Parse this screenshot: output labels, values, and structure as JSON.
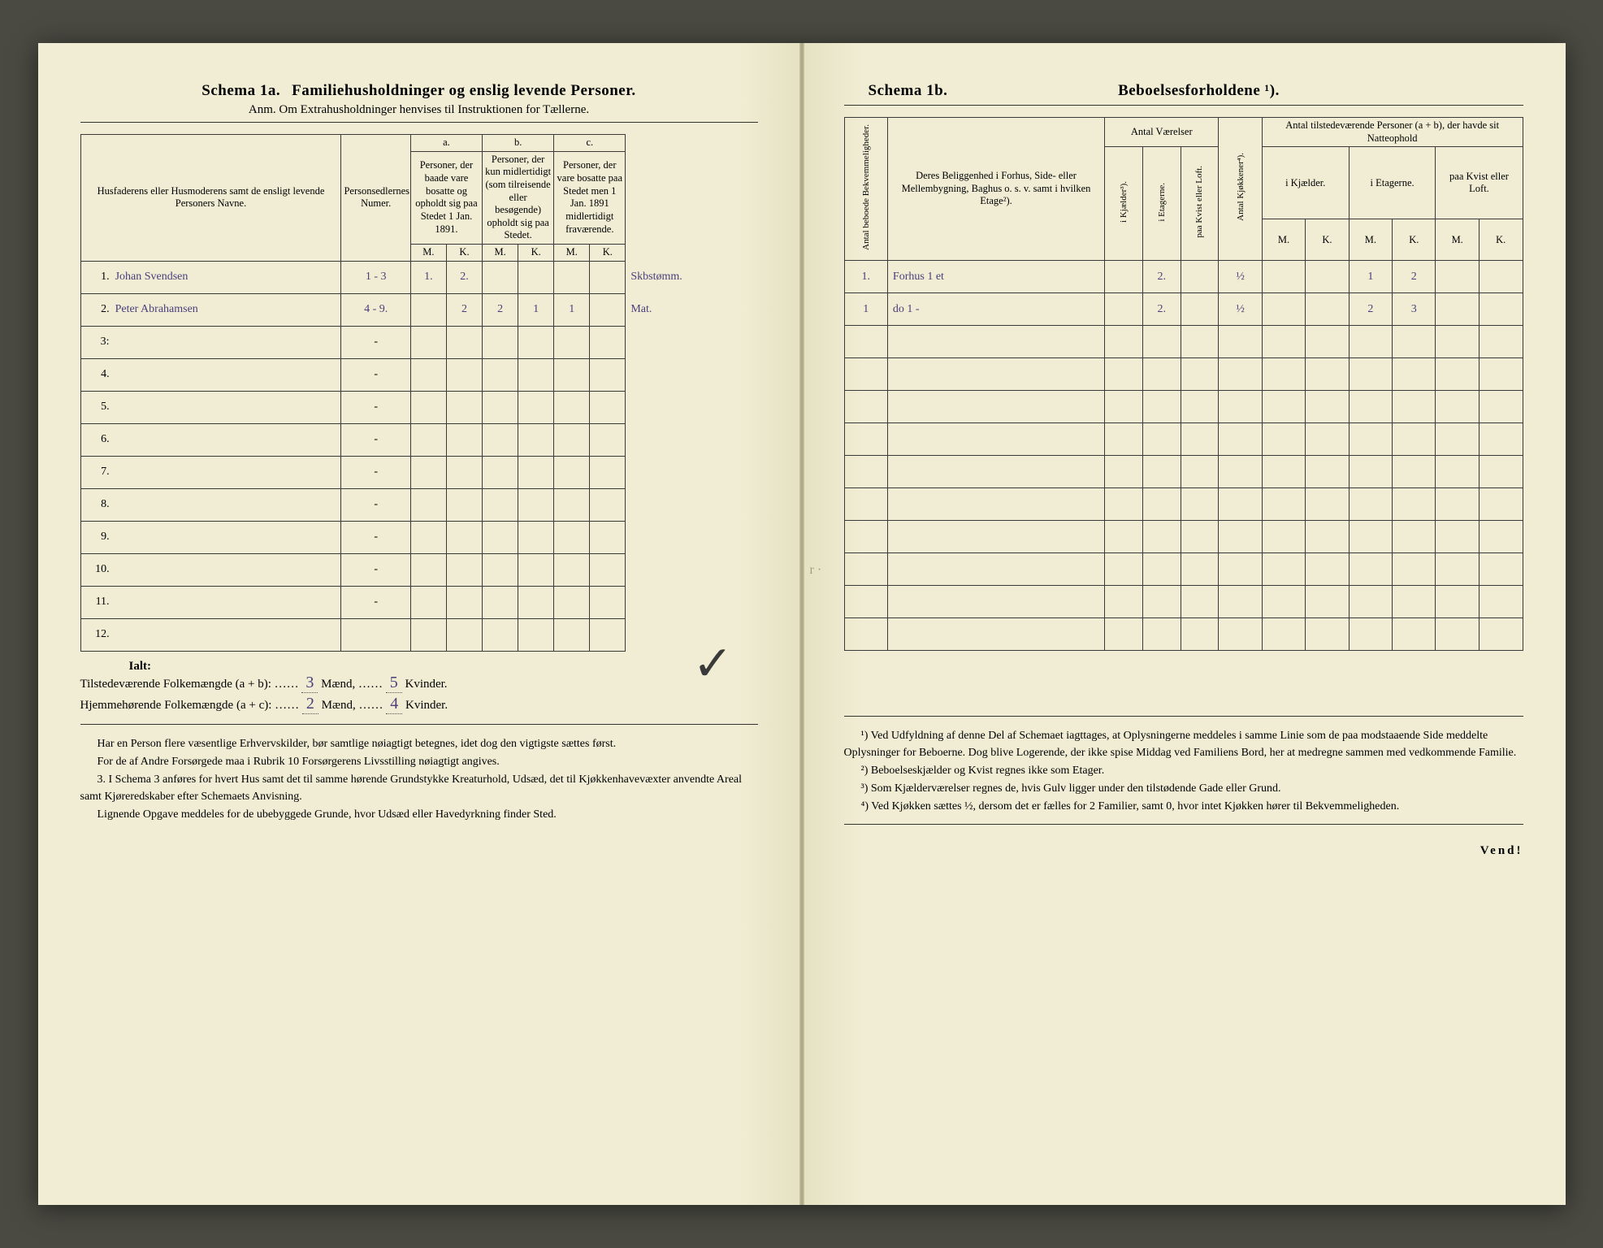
{
  "left": {
    "schema_label": "Schema 1a.",
    "schema_title": "Familiehusholdninger og enslig levende Personer.",
    "anm": "Anm. Om Extrahusholdninger henvises til Instruktionen for Tællerne.",
    "head": {
      "col1": "Husfaderens eller Husmoderens samt de ensligt levende Personers Navne.",
      "col2": "Personsedlernes Numer.",
      "a_label": "a.",
      "a_text": "Personer, der baade vare bosatte og opholdt sig paa Stedet 1 Jan. 1891.",
      "b_label": "b.",
      "b_text": "Personer, der kun midlertidigt (som tilreisende eller besøgende) opholdt sig paa Stedet.",
      "c_label": "c.",
      "c_text": "Personer, der vare bosatte paa Stedet men 1 Jan. 1891 midlertidigt fraværende.",
      "M": "M.",
      "K": "K."
    },
    "rows": [
      {
        "n": "1.",
        "name": "Johan Svendsen",
        "num": "1 - 3",
        "aM": "1.",
        "aK": "2.",
        "bM": "",
        "bK": "",
        "cM": "",
        "cK": "",
        "note": "Skbstømm."
      },
      {
        "n": "2.",
        "name": "Peter Abrahamsen",
        "num": "4 - 9.",
        "aM": "",
        "aK": "2",
        "bM": "2",
        "bK": "1",
        "cM": "1",
        "cK": "",
        "note": "Mat."
      },
      {
        "n": "3:",
        "name": "",
        "num": "-",
        "aM": "",
        "aK": "",
        "bM": "",
        "bK": "",
        "cM": "",
        "cK": "",
        "note": ""
      },
      {
        "n": "4.",
        "name": "",
        "num": "-",
        "aM": "",
        "aK": "",
        "bM": "",
        "bK": "",
        "cM": "",
        "cK": "",
        "note": ""
      },
      {
        "n": "5.",
        "name": "",
        "num": "-",
        "aM": "",
        "aK": "",
        "bM": "",
        "bK": "",
        "cM": "",
        "cK": "",
        "note": ""
      },
      {
        "n": "6.",
        "name": "",
        "num": "-",
        "aM": "",
        "aK": "",
        "bM": "",
        "bK": "",
        "cM": "",
        "cK": "",
        "note": ""
      },
      {
        "n": "7.",
        "name": "",
        "num": "-",
        "aM": "",
        "aK": "",
        "bM": "",
        "bK": "",
        "cM": "",
        "cK": "",
        "note": ""
      },
      {
        "n": "8.",
        "name": "",
        "num": "-",
        "aM": "",
        "aK": "",
        "bM": "",
        "bK": "",
        "cM": "",
        "cK": "",
        "note": ""
      },
      {
        "n": "9.",
        "name": "",
        "num": "-",
        "aM": "",
        "aK": "",
        "bM": "",
        "bK": "",
        "cM": "",
        "cK": "",
        "note": ""
      },
      {
        "n": "10.",
        "name": "",
        "num": "-",
        "aM": "",
        "aK": "",
        "bM": "",
        "bK": "",
        "cM": "",
        "cK": "",
        "note": ""
      },
      {
        "n": "11.",
        "name": "",
        "num": "-",
        "aM": "",
        "aK": "",
        "bM": "",
        "bK": "",
        "cM": "",
        "cK": "",
        "note": ""
      },
      {
        "n": "12.",
        "name": "",
        "num": "",
        "aM": "",
        "aK": "",
        "bM": "",
        "bK": "",
        "cM": "",
        "cK": "",
        "note": ""
      }
    ],
    "totals": {
      "ialt": "Ialt:",
      "line1_a": "Tilstedeværende Folkemængde (a + b): ……",
      "line1_m": "3",
      "line1_mid": " Mænd, ……",
      "line1_k": "5",
      "line1_end": " Kvinder.",
      "line2_a": "Hjemmehørende Folkemængde (a + c): ……",
      "line2_m": "2",
      "line2_mid": " Mænd, ……",
      "line2_k": "4",
      "line2_end": " Kvinder."
    },
    "prose": {
      "p1": "Har en Person flere væsentlige Erhvervskilder, bør samtlige nøiagtigt betegnes, idet dog den vigtigste sættes først.",
      "p2": "For de af Andre Forsørgede maa i Rubrik 10 Forsørgerens Livsstilling nøiagtigt angives.",
      "p3_num": "3.",
      "p3": "I Schema 3 anføres for hvert Hus samt det til samme hørende Grundstykke Kreaturhold, Udsæd, det til Kjøkkenhavevæxter anvendte Areal samt Kjøreredskaber efter Schemaets Anvisning.",
      "p4": "Lignende Opgave meddeles for de ubebyggede Grunde, hvor Udsæd eller Havedyrkning finder Sted."
    }
  },
  "right": {
    "schema_label": "Schema 1b.",
    "schema_title": "Beboelsesforholdene ¹).",
    "head": {
      "v1": "Antal beboede Bekvemmeligheder.",
      "col2": "Deres Beliggenhed i Forhus, Side- eller Mellembygning, Baghus o. s. v. samt i hvilken Etage²).",
      "group1": "Antal Værelser",
      "v_kj": "i Kjælder³).",
      "v_et": "i Etagerne.",
      "v_kv": "paa Kvist eller Loft.",
      "v_ko": "Antal Kjøkkener⁴).",
      "group2": "Antal tilstedeværende Personer (a + b), der havde sit Natteophold",
      "sub_kj": "i Kjælder.",
      "sub_et": "i Etagerne.",
      "sub_kv": "paa Kvist eller Loft.",
      "M": "M.",
      "K": "K."
    },
    "rows": [
      {
        "bk": "1.",
        "bel": "Forhus 1 et",
        "bel2": "",
        "kj": "",
        "et": "2.",
        "kv": "",
        "ko": "½",
        "kjM": "",
        "kjK": "",
        "etM": "1",
        "etK": "2",
        "kvM": "",
        "kvK": ""
      },
      {
        "bk": "1",
        "bel": "do 1 -",
        "bel2": "",
        "kj": "",
        "et": "2.",
        "kv": "",
        "ko": "½",
        "kjM": "",
        "kjK": "",
        "etM": "2",
        "etK": "3",
        "kvM": "",
        "kvK": ""
      },
      {
        "bk": "",
        "bel": "",
        "bel2": "",
        "kj": "",
        "et": "",
        "kv": "",
        "ko": "",
        "kjM": "",
        "kjK": "",
        "etM": "",
        "etK": "",
        "kvM": "",
        "kvK": ""
      },
      {
        "bk": "",
        "bel": "",
        "bel2": "",
        "kj": "",
        "et": "",
        "kv": "",
        "ko": "",
        "kjM": "",
        "kjK": "",
        "etM": "",
        "etK": "",
        "kvM": "",
        "kvK": ""
      },
      {
        "bk": "",
        "bel": "",
        "bel2": "",
        "kj": "",
        "et": "",
        "kv": "",
        "ko": "",
        "kjM": "",
        "kjK": "",
        "etM": "",
        "etK": "",
        "kvM": "",
        "kvK": ""
      },
      {
        "bk": "",
        "bel": "",
        "bel2": "",
        "kj": "",
        "et": "",
        "kv": "",
        "ko": "",
        "kjM": "",
        "kjK": "",
        "etM": "",
        "etK": "",
        "kvM": "",
        "kvK": ""
      },
      {
        "bk": "",
        "bel": "",
        "bel2": "",
        "kj": "",
        "et": "",
        "kv": "",
        "ko": "",
        "kjM": "",
        "kjK": "",
        "etM": "",
        "etK": "",
        "kvM": "",
        "kvK": ""
      },
      {
        "bk": "",
        "bel": "",
        "bel2": "",
        "kj": "",
        "et": "",
        "kv": "",
        "ko": "",
        "kjM": "",
        "kjK": "",
        "etM": "",
        "etK": "",
        "kvM": "",
        "kvK": ""
      },
      {
        "bk": "",
        "bel": "",
        "bel2": "",
        "kj": "",
        "et": "",
        "kv": "",
        "ko": "",
        "kjM": "",
        "kjK": "",
        "etM": "",
        "etK": "",
        "kvM": "",
        "kvK": ""
      },
      {
        "bk": "",
        "bel": "",
        "bel2": "",
        "kj": "",
        "et": "",
        "kv": "",
        "ko": "",
        "kjM": "",
        "kjK": "",
        "etM": "",
        "etK": "",
        "kvM": "",
        "kvK": ""
      },
      {
        "bk": "",
        "bel": "",
        "bel2": "",
        "kj": "",
        "et": "",
        "kv": "",
        "ko": "",
        "kjM": "",
        "kjK": "",
        "etM": "",
        "etK": "",
        "kvM": "",
        "kvK": ""
      },
      {
        "bk": "",
        "bel": "",
        "bel2": "",
        "kj": "",
        "et": "",
        "kv": "",
        "ko": "",
        "kjM": "",
        "kjK": "",
        "etM": "",
        "etK": "",
        "kvM": "",
        "kvK": ""
      }
    ],
    "prose": {
      "p1_num": "¹)",
      "p1": "Ved Udfyldning af denne Del af Schemaet iagttages, at Oplysningerne meddeles i samme Linie som de paa modstaaende Side meddelte Oplysninger for Beboerne. Dog blive Logerende, der ikke spise Middag ved Familiens Bord, her at medregne sammen med vedkommende Familie.",
      "p2_num": "²)",
      "p2": "Beboelseskjælder og Kvist regnes ikke som Etager.",
      "p3_num": "³)",
      "p3": "Som Kjælderværelser regnes de, hvis Gulv ligger under den tilstødende Gade eller Grund.",
      "p4_num": "⁴)",
      "p4": "Ved Kjøkken sættes ½, dersom det er fælles for 2 Familier, samt 0, hvor intet Kjøkken hører til Bekvemmeligheden."
    },
    "vend": "Vend!"
  },
  "style": {
    "paper": "#f0edd4",
    "ink": "#2a2a2a",
    "hand": "#4a3f7a",
    "border": "#3a3a3a"
  }
}
